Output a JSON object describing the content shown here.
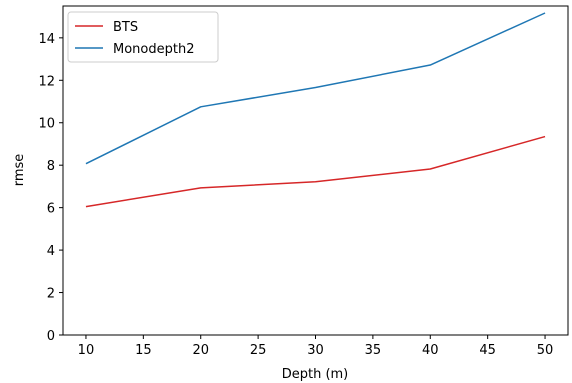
{
  "chart_data": {
    "type": "line",
    "xlabel": "Depth (m)",
    "ylabel": "rmse",
    "xlim": [
      8,
      52
    ],
    "ylim": [
      0,
      15.5
    ],
    "xticks": [
      10,
      15,
      20,
      25,
      30,
      35,
      40,
      45,
      50
    ],
    "yticks": [
      0,
      2,
      4,
      6,
      8,
      10,
      12,
      14
    ],
    "grid": false,
    "legend_position": "top-left",
    "x": [
      10,
      20,
      30,
      40,
      50
    ],
    "series": [
      {
        "name": "BTS",
        "color": "#d62728",
        "values": [
          6.05,
          6.93,
          7.22,
          7.82,
          9.35
        ]
      },
      {
        "name": "Monodepth2",
        "color": "#1f77b4",
        "values": [
          8.07,
          10.75,
          11.66,
          12.72,
          15.17
        ]
      }
    ]
  }
}
